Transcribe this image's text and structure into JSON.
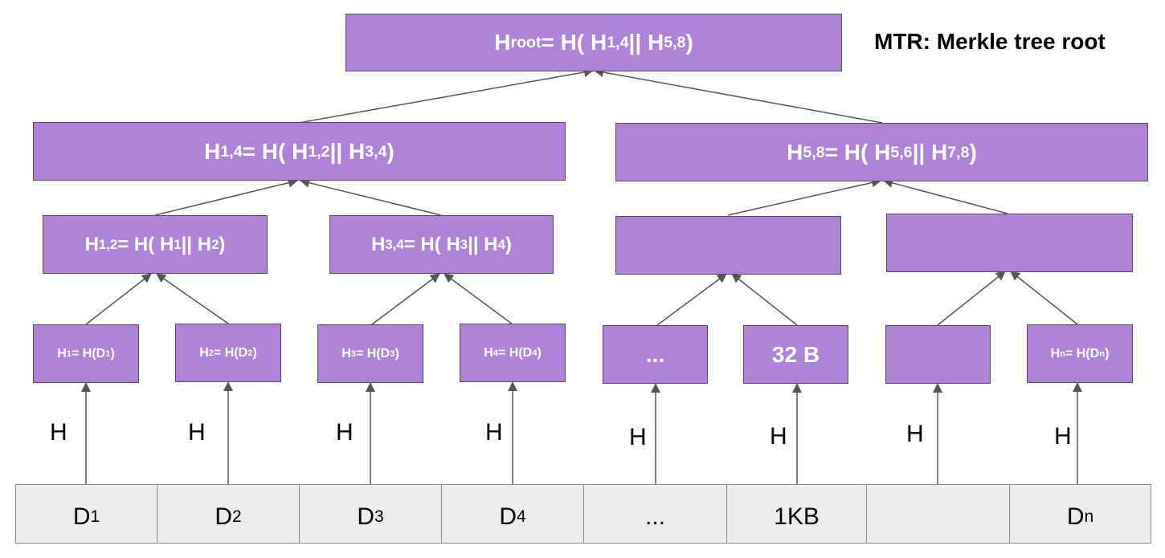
{
  "title": "MTR: Merkle tree root",
  "hash_label": "H",
  "root": {
    "label": "Hroot= H( H1,4 || H5,8 )"
  },
  "level1": [
    {
      "label": "H1,4 = H( H1,2 || H3,4 )"
    },
    {
      "label": "H5,8 = H( H5,6 || H7,8 )"
    }
  ],
  "level2": [
    {
      "label": "H1,2 = H( H1 || H2 )"
    },
    {
      "label": "H3,4 = H( H3 || H4 )"
    },
    {
      "label": ""
    },
    {
      "label": ""
    }
  ],
  "leaves": [
    {
      "label": "H1= H(D1)"
    },
    {
      "label": "H2= H(D2)"
    },
    {
      "label": "H3= H(D3)"
    },
    {
      "label": "H4= H(D4)"
    },
    {
      "label": "..."
    },
    {
      "label": "32 B"
    },
    {
      "label": ""
    },
    {
      "label": "Hn= H(Dn)"
    }
  ],
  "data_blocks": [
    {
      "label": "D1"
    },
    {
      "label": "D2"
    },
    {
      "label": "D3"
    },
    {
      "label": "D4"
    },
    {
      "label": "..."
    },
    {
      "label": "1KB"
    },
    {
      "label": ""
    },
    {
      "label": "Dn"
    }
  ],
  "colors": {
    "node_fill": "#ae82d6",
    "node_border": "#5a4a66",
    "node_text": "#ffffff",
    "data_fill": "#ececec",
    "edge": "#555555"
  }
}
